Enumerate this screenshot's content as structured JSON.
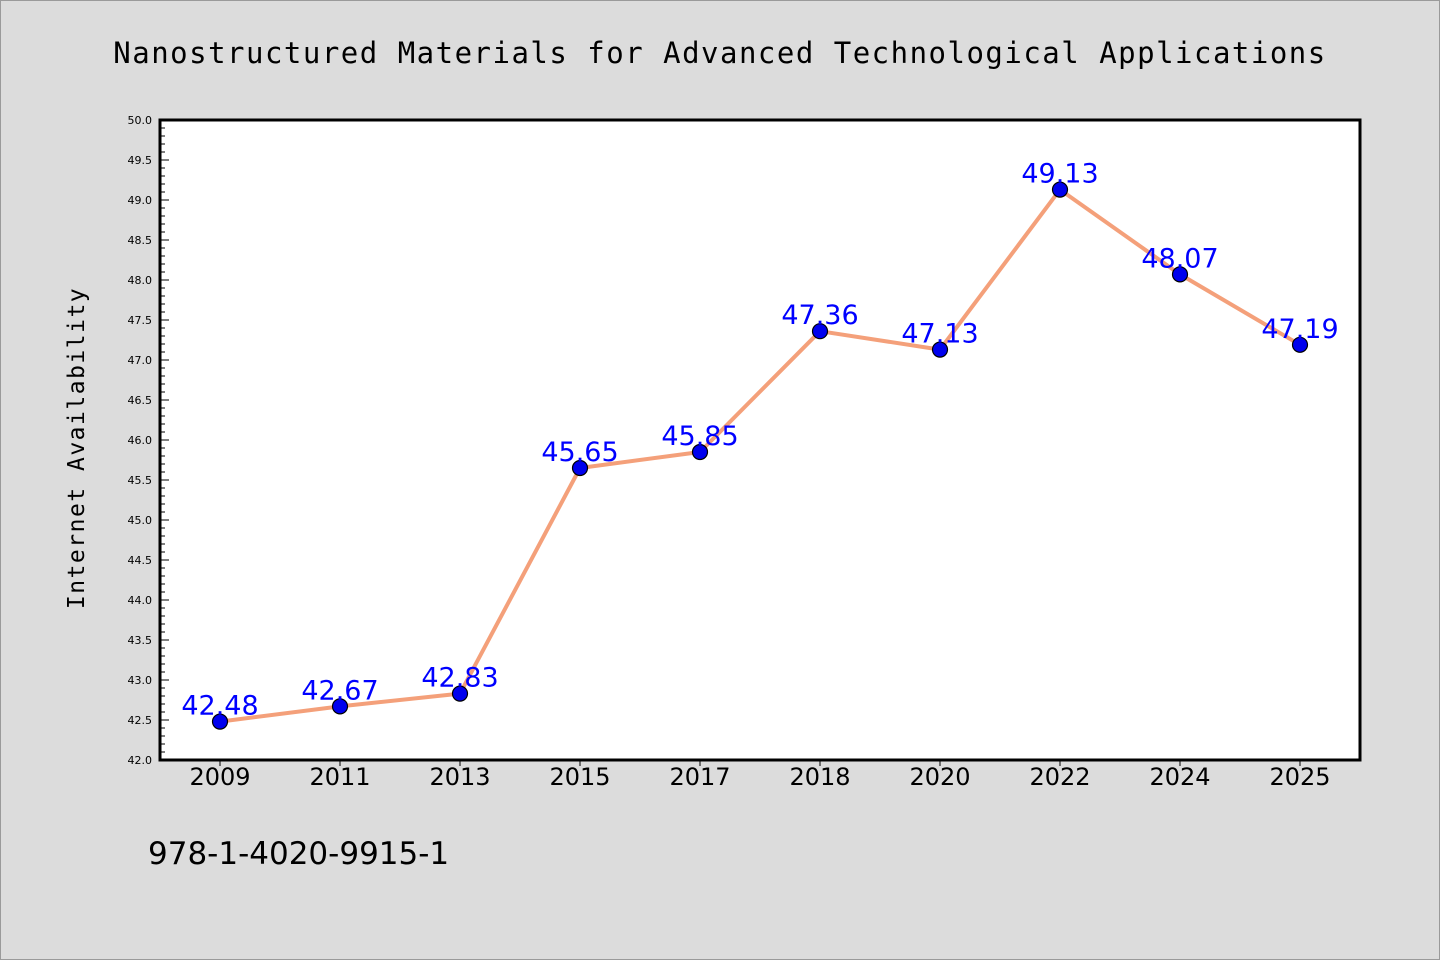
{
  "chart_data": {
    "type": "line",
    "title": "Nanostructured Materials for Advanced Technological Applications",
    "ylabel": "Internet Availability",
    "xlabel": "",
    "categories": [
      "2009",
      "2011",
      "2013",
      "2015",
      "2017",
      "2018",
      "2020",
      "2022",
      "2024",
      "2025"
    ],
    "values": [
      42.48,
      42.67,
      42.83,
      45.65,
      45.85,
      47.36,
      47.13,
      49.13,
      48.07,
      47.19
    ],
    "data_labels": [
      "42.48",
      "42.67",
      "42.83",
      "45.65",
      "45.85",
      "47.36",
      "47.13",
      "49.13",
      "48.07",
      "47.19"
    ],
    "ylim": [
      42.0,
      50.0
    ],
    "y_ticks": [
      "42.0",
      "42.5",
      "43.0",
      "43.5",
      "44.0",
      "44.5",
      "45.0",
      "45.5",
      "46.0",
      "46.5",
      "47.0",
      "47.5",
      "48.0",
      "48.5",
      "49.0",
      "49.5",
      "50.0"
    ],
    "grid": false,
    "line_color": "#f4a07a",
    "marker_color": "#0000ee",
    "label_color": "#0000ff",
    "footer_text": "978-1-4020-9915-1"
  }
}
